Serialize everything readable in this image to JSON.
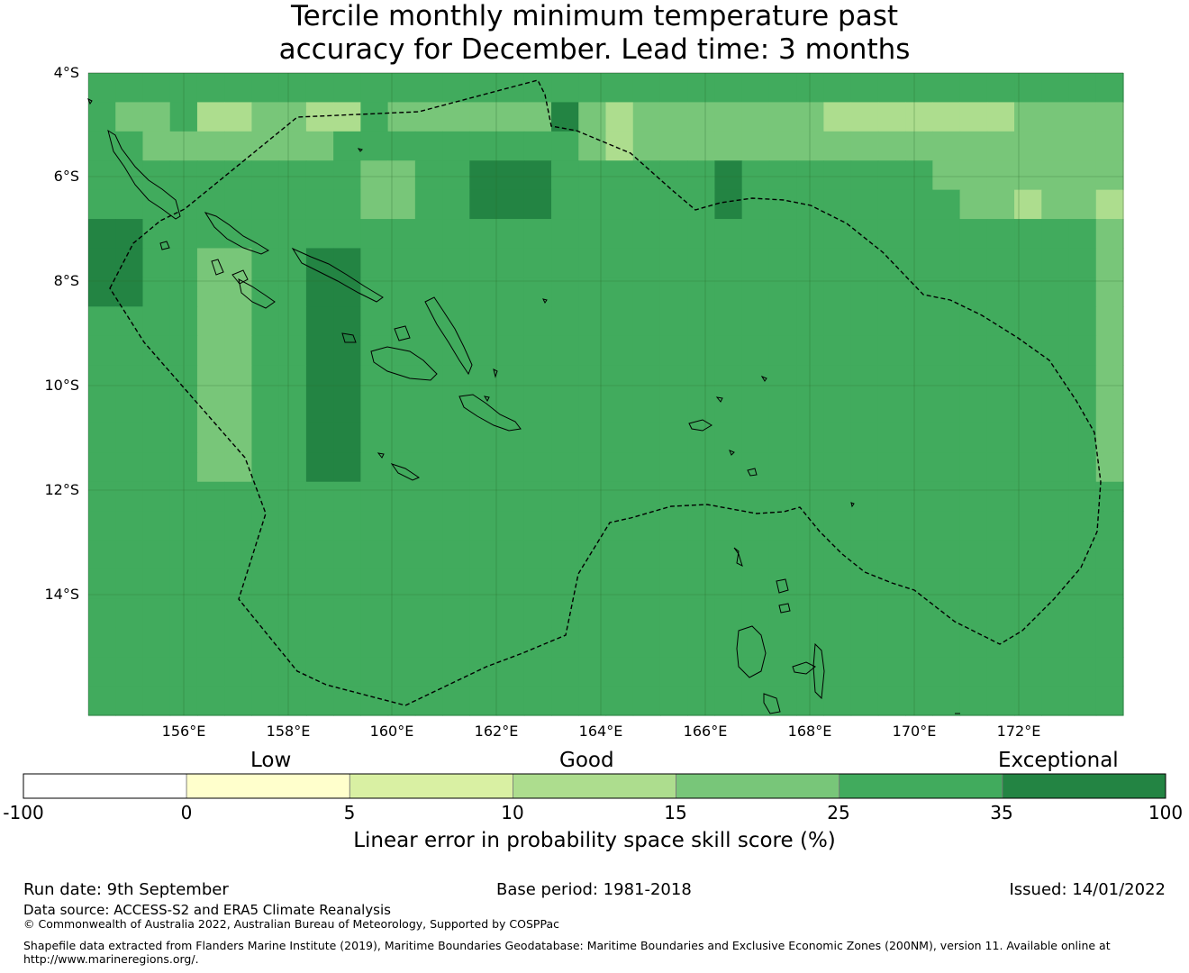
{
  "title": {
    "line1": "Tercile monthly minimum temperature past",
    "line2": "accuracy for December. Lead time: 3 months"
  },
  "map": {
    "lat_labels": [
      "4°S",
      "6°S",
      "8°S",
      "10°S",
      "12°S",
      "14°S"
    ],
    "lon_labels": [
      "156°E",
      "158°E",
      "160°E",
      "162°E",
      "164°E",
      "166°E",
      "168°E",
      "170°E",
      "172°E"
    ],
    "grid_rows": [
      "22222222222222222222222222222222222222",
      "23324433442333333534333333344444443333",
      "22333333322222222234333333333333333333",
      "22222222223322555222222522222223333333",
      "22222222223322555222222522222222334334",
      "55222222222222222222222222222222222223",
      "55223322552222222222222222222222222223",
      "55223322552222222222222222222222222223",
      "22223322552222222222222222222222222223",
      "22223322552222222222222222222222222223",
      "22223322552222222222222222222222222223",
      "22223322552222222222222222222222222223",
      "22223322552222222222222222222222222223",
      "22223322552222222222222222222222222223",
      "22222222222222222222222222222222222222",
      "22222222222222222222222222222222222222",
      "22222222222222222222222222222222222222",
      "22222222222222222222222222222222222222",
      "22222222222222222222222222222222222222",
      "22222222222222222222222222222222222222",
      "22222222222222222222222222222222222222",
      "22222222222222222222222222222222222222"
    ]
  },
  "colorbar": {
    "colors": [
      "#ffffff",
      "#ffffcc",
      "#d9f0a3",
      "#addd8e",
      "#78c679",
      "#41ab5d",
      "#238443"
    ],
    "ticks": [
      "-100",
      "0",
      "5",
      "10",
      "15",
      "25",
      "35",
      "100"
    ],
    "categories": [
      "Low",
      "Good",
      "Exceptional"
    ],
    "label": "Linear error in probability space skill score (%)"
  },
  "footer": {
    "run_date": "Run date: 9th September",
    "base_period": "Base period: 1981-2018",
    "issued": "Issued: 14/01/2022",
    "data_source": "Data source: ACCESS-S2 and ERA5 Climate Reanalysis",
    "copyright": "© Commonwealth of Australia 2022, Australian Bureau of Meteorology, Supported by COSPPac",
    "shapefile_line1": "Shapefile data extracted from Flanders Marine Institute (2019), Maritime Boundaries Geodatabase: Maritime Boundaries and Exclusive Economic Zones (200NM), version 11. Available online at",
    "shapefile_line2": "http://www.marineregions.org/."
  }
}
